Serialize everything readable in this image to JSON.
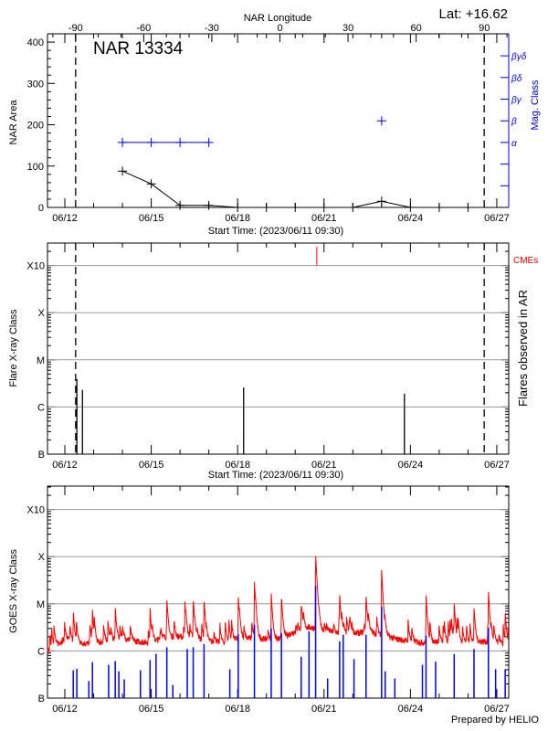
{
  "chart_data": [
    {
      "type": "line",
      "title": "NAR 13334",
      "annotation": "Lat: +16.62",
      "ylabel": "NAR Area",
      "y2label": "Mag. Class",
      "xlabel": "Start Time: (2023/06/11 09:30)",
      "top_xlabel": "NAR Longitude",
      "xlim": [
        "06/11 09:30",
        "06/27 09:30"
      ],
      "ylim": [
        0,
        420
      ],
      "yticks": [
        "0",
        "100",
        "200",
        "300",
        "400"
      ],
      "xticks": [
        "06/12",
        "06/15",
        "06/18",
        "06/21",
        "06/24",
        "06/27"
      ],
      "top_xticks": [
        "-90",
        "-60",
        "-30",
        "0",
        "30",
        "60",
        "90"
      ],
      "y2_levels": [
        "",
        "",
        "α",
        "β",
        "βγ",
        "βδ",
        "βγδ"
      ],
      "limb_times": [
        "06/12 09:00",
        "06/26 13:30"
      ],
      "series": [
        {
          "kind": "area",
          "color": "#000000",
          "x": [
            "06/14 00:00",
            "06/15 00:00",
            "06/16 00:00",
            "06/17 00:00",
            "06/18 00:00",
            "06/19 00:00",
            "06/20 00:00",
            "06/21 00:00",
            "06/22 00:00",
            "06/23 00:00",
            "06/24 00:00",
            "06/25 00:00",
            "06/26 00:00"
          ],
          "values": [
            88,
            57,
            5,
            5,
            0,
            0,
            0,
            0,
            0,
            15,
            0,
            0,
            0
          ]
        },
        {
          "kind": "mag_class",
          "color": "#0000ff",
          "x": [
            "06/14 00:00",
            "06/15 00:00",
            "06/16 00:00",
            "06/17 00:00",
            "06/23 00:00"
          ],
          "values": [
            "α",
            "α",
            "α",
            "α",
            "β"
          ]
        }
      ]
    },
    {
      "type": "bar",
      "ylabel": "Flare X-ray Class",
      "y2label": "Flares observed in AR",
      "xlabel": "Start Time: (2023/06/11 09:30)",
      "xlim": [
        "06/11 09:30",
        "06/27 09:30"
      ],
      "yscale": "log",
      "yticks": [
        "B",
        "C",
        "M",
        "X",
        "X10"
      ],
      "xticks": [
        "06/12",
        "06/15",
        "06/18",
        "06/21",
        "06/24",
        "06/27"
      ],
      "limb_times": [
        "06/12 09:00",
        "06/26 13:30"
      ],
      "flares": [
        {
          "time": "06/12 10:00",
          "class": "C3.9"
        },
        {
          "time": "06/12 14:40",
          "class": "C2.3"
        },
        {
          "time": "06/18 05:00",
          "class": "C2.6"
        },
        {
          "time": "06/23 19:00",
          "class": "C1.9"
        }
      ],
      "cme_label": "CMEs",
      "cme_color": "#ff0000",
      "cmes": [
        "06/20 18:00"
      ]
    },
    {
      "type": "line",
      "ylabel": "GOES X-ray Class",
      "xlim": [
        "06/11 09:30",
        "06/27 09:30"
      ],
      "yscale": "log",
      "yticks": [
        "B",
        "C",
        "M",
        "X",
        "X10"
      ],
      "xticks": [
        "06/12",
        "06/15",
        "06/18",
        "06/21",
        "06/24",
        "06/27"
      ],
      "footer": "Prepared by HELIO",
      "long_channel": {
        "color": "#ff0000",
        "background_every_12h_from_06_11_12_00": [
          "C1.0",
          "C1.8",
          "C1.5",
          "C1.4",
          "C1.7",
          "C1.9",
          "C1.6",
          "C1.5",
          "C2.0",
          "C2.0",
          "C1.9",
          "C1.6",
          "C1.5",
          "C1.8",
          "C1.9",
          "C1.8",
          "C1.8",
          "C2.6",
          "C3.2",
          "C2.8",
          "C2.4",
          "C2.3",
          "C2.6",
          "C2.2",
          "C1.8",
          "C1.6",
          "C1.5",
          "C1.6",
          "C1.4",
          "C1.5",
          "C1.6",
          "C1.5",
          "C1.2"
        ],
        "peaks": [
          [
            "06/12 07:00",
            "C5.4"
          ],
          [
            "06/12 23:00",
            "C5.4"
          ],
          [
            "06/13 18:00",
            "C6.4"
          ],
          [
            "06/14 23:00",
            "C6.6"
          ],
          [
            "06/15 13:00",
            "M1.0"
          ],
          [
            "06/16 04:00",
            "C9.0"
          ],
          [
            "06/16 11:00",
            "M1.1"
          ],
          [
            "06/16 20:00",
            "M1.1"
          ],
          [
            "06/18 00:30",
            "M1.3"
          ],
          [
            "06/18 14:00",
            "M2.6"
          ],
          [
            "06/19 04:00",
            "M1.5"
          ],
          [
            "06/19 12:30",
            "M1.2"
          ],
          [
            "06/20 05:00",
            "C6.2"
          ],
          [
            "06/20 17:00",
            "X1.1"
          ],
          [
            "06/21 13:00",
            "M1.2"
          ],
          [
            "06/22 11:00",
            "M1.2"
          ],
          [
            "06/23 00:00",
            "M5.0"
          ],
          [
            "06/24 13:00",
            "M1.2"
          ],
          [
            "06/25 12:30",
            "C9.0"
          ],
          [
            "06/26 05:00",
            "C7.0"
          ],
          [
            "06/26 17:00",
            "M1.7"
          ],
          [
            "06/27 07:00",
            "C5.3"
          ]
        ]
      },
      "short_channel": {
        "color": "#0000ff",
        "peaks": [
          [
            "06/12 07:00",
            "B3.9"
          ],
          [
            "06/12 10:00",
            "B4.2"
          ],
          [
            "06/12 20:00",
            "B2.3"
          ],
          [
            "06/12 23:00",
            "B5.8"
          ],
          [
            "06/13 12:30",
            "B5.1"
          ],
          [
            "06/13 18:00",
            "B6.1"
          ],
          [
            "06/13 21:00",
            "B3.7"
          ],
          [
            "06/14 01:30",
            "B2.5"
          ],
          [
            "06/14 15:00",
            "B3.9"
          ],
          [
            "06/14 23:00",
            "B6.4"
          ],
          [
            "06/15 04:00",
            "B8.7"
          ],
          [
            "06/15 13:00",
            "C1.2"
          ],
          [
            "06/15 18:00",
            "B1.9"
          ],
          [
            "06/16 06:00",
            "C1.1"
          ],
          [
            "06/16 11:00",
            "C1.2"
          ],
          [
            "06/16 20:00",
            "C1.4"
          ],
          [
            "06/17 17:30",
            "B4.1"
          ],
          [
            "06/18 00:30",
            "C2.3"
          ],
          [
            "06/18 14:00",
            "C3.6"
          ],
          [
            "06/19 04:00",
            "C3.0"
          ],
          [
            "06/19 12:30",
            "C2.4"
          ],
          [
            "06/20 05:00",
            "B7.5"
          ],
          [
            "06/20 11:30",
            "C2.6"
          ],
          [
            "06/20 17:00",
            "M2.4"
          ],
          [
            "06/21 03:00",
            "B2.6"
          ],
          [
            "06/21 13:00",
            "C1.6"
          ],
          [
            "06/21 16:00",
            "C2.2"
          ],
          [
            "06/22 01:00",
            "B6.7"
          ],
          [
            "06/22 11:00",
            "C2.2"
          ],
          [
            "06/23 00:00",
            "C8.6"
          ],
          [
            "06/23 03:00",
            "B3.7"
          ],
          [
            "06/23 11:00",
            "B2.6"
          ],
          [
            "06/24 10:00",
            "B5.1"
          ],
          [
            "06/24 13:00",
            "C2.1"
          ],
          [
            "06/24 21:00",
            "B5.9"
          ],
          [
            "06/25 12:30",
            "B8.6"
          ],
          [
            "06/26 05:00",
            "C1.1"
          ],
          [
            "06/26 17:00",
            "C3.1"
          ],
          [
            "06/26 23:00",
            "B4.1"
          ],
          [
            "06/27 07:00",
            "B4.1"
          ]
        ]
      }
    }
  ]
}
